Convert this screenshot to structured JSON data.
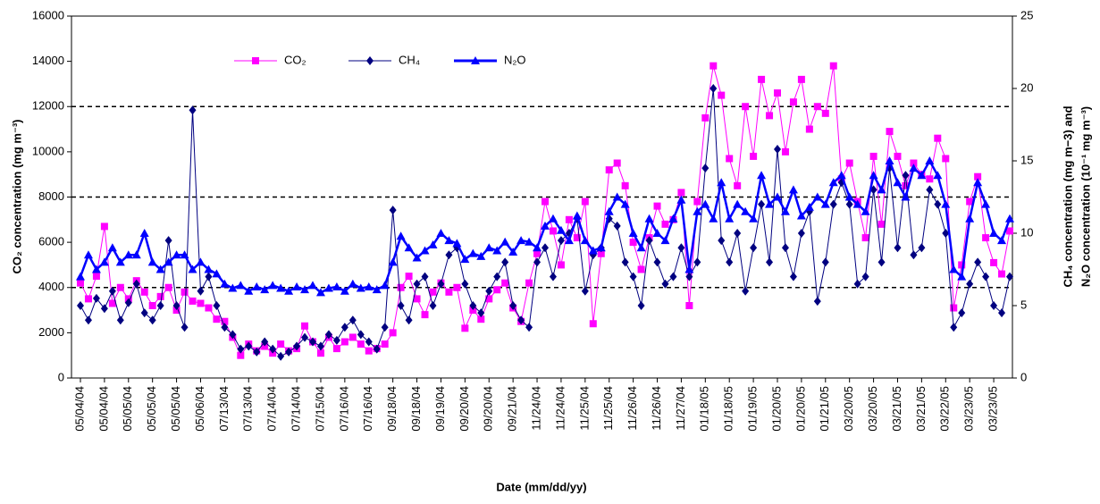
{
  "chart_data": {
    "type": "line",
    "x_label": "Date (mm/dd/yy)",
    "y_label": "CO₂ concentration (mg m⁻³)",
    "y2_label": [
      "CH₄ concentration (mg m−3) and",
      "N₂O concentration (10⁻¹ mg m⁻³)"
    ],
    "ylim": [
      0,
      16000
    ],
    "yticks": [
      0,
      2000,
      4000,
      6000,
      8000,
      10000,
      12000,
      14000,
      16000
    ],
    "y2lim": [
      0,
      25
    ],
    "y2ticks": [
      0,
      5,
      10,
      15,
      20,
      25
    ],
    "hlines": [
      4000,
      8000,
      12000
    ],
    "categories": [
      "05/04/04",
      null,
      null,
      "05/04/04",
      null,
      null,
      "05/05/04",
      null,
      null,
      "05/05/04",
      null,
      null,
      "05/05/04",
      null,
      null,
      "05/06/04",
      null,
      null,
      "07/13/04",
      null,
      null,
      "07/13/04",
      null,
      null,
      "07/14/04",
      null,
      null,
      "07/14/04",
      null,
      null,
      "07/15/04",
      null,
      null,
      "07/16/04",
      null,
      null,
      "07/16/04",
      null,
      null,
      "09/18/04",
      null,
      null,
      "09/18/04",
      null,
      null,
      "09/19/04",
      null,
      null,
      "09/20/04",
      null,
      null,
      "09/20/04",
      null,
      null,
      "09/21/04",
      null,
      null,
      "11/24/04",
      null,
      null,
      "11/24/04",
      null,
      null,
      "11/25/04",
      null,
      null,
      "11/25/04",
      null,
      null,
      "11/26/04",
      null,
      null,
      "11/26/04",
      null,
      null,
      "11/27/04",
      null,
      null,
      "01/18/05",
      null,
      null,
      "01/18/05",
      null,
      null,
      "01/19/05",
      null,
      null,
      "01/20/05",
      null,
      null,
      "01/20/05",
      null,
      null,
      "01/21/05",
      null,
      null,
      "03/20/05",
      null,
      null,
      "03/20/05",
      null,
      null,
      "03/21/05",
      null,
      null,
      "03/21/05",
      null,
      null,
      "03/22/05",
      null,
      null,
      "03/23/05",
      null,
      null,
      "03/23/05",
      null,
      null
    ],
    "series": [
      {
        "name": "CO₂",
        "color": "#ff00ff",
        "marker": "square",
        "axis": "y",
        "values": [
          4200,
          3500,
          4500,
          6700,
          3300,
          4000,
          3500,
          4300,
          3800,
          3200,
          3600,
          4000,
          3000,
          3800,
          3400,
          3300,
          3100,
          2600,
          2500,
          1800,
          1000,
          1500,
          1200,
          1400,
          1100,
          1500,
          1200,
          1300,
          2300,
          1600,
          1100,
          1800,
          1300,
          1600,
          1800,
          1500,
          1200,
          1300,
          1500,
          2000,
          4000,
          4500,
          3500,
          2800,
          3800,
          4200,
          3800,
          4000,
          2200,
          3000,
          2600,
          3500,
          3900,
          4200,
          3100,
          2500,
          4200,
          5500,
          7800,
          6500,
          5000,
          7000,
          6200,
          7800,
          2400,
          5500,
          9200,
          9500,
          8500,
          6000,
          4800,
          6200,
          7600,
          6800,
          7000,
          8200,
          3200,
          7800,
          11500,
          13800,
          12500,
          9700,
          8500,
          12000,
          9800,
          13200,
          11600,
          12600,
          10000,
          12200,
          13200,
          11000,
          12000,
          11700,
          13800,
          8800,
          9500,
          7800,
          6200,
          9800,
          6800,
          10900,
          9800,
          8500,
          9500,
          9000,
          8800,
          10600,
          9700,
          3100,
          5000,
          7800,
          8900,
          6200,
          5100,
          4600,
          6500
        ]
      },
      {
        "name": "CH₄",
        "color": "#000080",
        "marker": "diamond",
        "axis": "y2",
        "values": [
          5,
          4,
          5.5,
          4.8,
          6,
          4,
          5.2,
          6.5,
          4.5,
          4,
          5,
          9.5,
          5,
          3.5,
          18.5,
          6,
          7,
          5,
          3.5,
          3,
          2,
          2.2,
          1.8,
          2.5,
          2,
          1.5,
          1.8,
          2.2,
          2.8,
          2.5,
          2.2,
          3,
          2.6,
          3.5,
          4,
          3,
          2.5,
          2,
          3.5,
          11.6,
          5,
          4,
          6.5,
          7,
          5,
          6.5,
          8.5,
          9,
          6.5,
          5,
          4.5,
          6,
          7,
          8,
          5,
          4,
          3.5,
          8,
          9,
          7,
          9.5,
          10,
          11,
          6,
          8.5,
          9,
          11,
          10.5,
          8,
          7,
          5,
          9.5,
          8,
          6.5,
          7,
          9,
          7,
          8,
          14.5,
          20,
          9.5,
          8,
          10,
          6,
          9,
          12,
          8,
          15.8,
          9,
          7,
          10,
          11.5,
          5.3,
          8,
          12,
          13.5,
          12,
          6.5,
          7,
          13,
          8,
          14.5,
          9,
          14,
          8.5,
          9,
          13,
          12,
          10,
          3.5,
          4.5,
          6.5,
          8,
          7,
          5,
          4.5,
          7
        ]
      },
      {
        "name": "N₂O",
        "color": "#0000ff",
        "marker": "triangle",
        "axis": "y2",
        "values": [
          7,
          8.5,
          7.5,
          8,
          9,
          8,
          8.5,
          8.5,
          10,
          8,
          7.5,
          8,
          8.5,
          8.5,
          7.5,
          8,
          7.5,
          7.2,
          6.5,
          6.2,
          6.4,
          6,
          6.3,
          6.1,
          6.4,
          6.2,
          6,
          6.3,
          6.1,
          6.4,
          5.9,
          6.2,
          6.3,
          6,
          6.5,
          6.2,
          6.3,
          6.1,
          6.4,
          8,
          9.8,
          9,
          8.3,
          8.8,
          9.2,
          10,
          9.5,
          9.3,
          8.2,
          8.6,
          8.4,
          9,
          8.8,
          9.4,
          8.7,
          9.5,
          9.4,
          9,
          10.5,
          11,
          10.2,
          9.5,
          11.2,
          9.5,
          8.8,
          9,
          11.5,
          12.5,
          12,
          10,
          9,
          11,
          10,
          9.5,
          11,
          12.3,
          7.5,
          11.5,
          12,
          11,
          13.5,
          11,
          12,
          11.5,
          11,
          14,
          12,
          12.5,
          11.5,
          13,
          11.2,
          11.8,
          12.5,
          12,
          13.5,
          14,
          12.5,
          12,
          11.5,
          14,
          13,
          15,
          13.5,
          12.5,
          14.5,
          14,
          15,
          14,
          12,
          7.5,
          7,
          11,
          13.5,
          12,
          10,
          9.5,
          11
        ]
      }
    ]
  }
}
